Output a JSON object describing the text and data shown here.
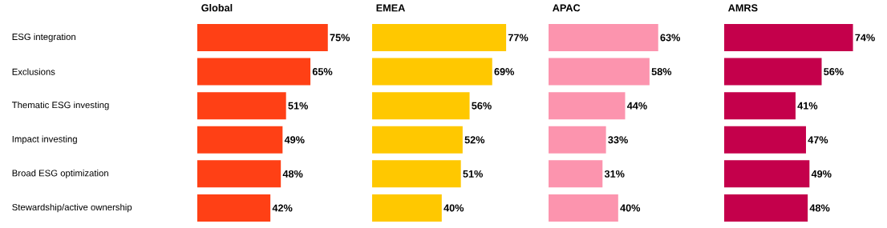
{
  "chart_data": [
    {
      "type": "bar",
      "orientation": "horizontal",
      "title": "Global",
      "categories": [
        "ESG integration",
        "Exclusions",
        "Thematic ESG investing",
        "Impact investing",
        "Broad ESG optimization",
        "Stewardship/active ownership"
      ],
      "values": [
        75,
        65,
        51,
        49,
        48,
        42
      ],
      "value_labels": [
        "75%",
        "65%",
        "51%",
        "49%",
        "48%",
        "42%"
      ],
      "color": "#ff4015",
      "tick_labels": "y"
    },
    {
      "type": "bar",
      "orientation": "horizontal",
      "title": "EMEA",
      "values": [
        77,
        69,
        56,
        52,
        51,
        40
      ],
      "value_labels": [
        "77%",
        "69%",
        "56%",
        "52%",
        "51%",
        "40%"
      ],
      "color": "#ffc800",
      "tick_labels": false
    },
    {
      "type": "bar",
      "orientation": "horizontal",
      "title": "APAC",
      "values": [
        63,
        58,
        44,
        33,
        31,
        40
      ],
      "value_labels": [
        "63%",
        "58%",
        "44%",
        "33%",
        "31%",
        "40%"
      ],
      "color": "#fc94ae",
      "tick_labels": false
    },
    {
      "type": "bar",
      "orientation": "horizontal",
      "title": "AMRS",
      "values": [
        74,
        56,
        41,
        47,
        49,
        48
      ],
      "value_labels": [
        "74%",
        "56%",
        "41%",
        "47%",
        "49%",
        "48%"
      ],
      "color": "#c4004b",
      "tick_labels": false
    }
  ]
}
